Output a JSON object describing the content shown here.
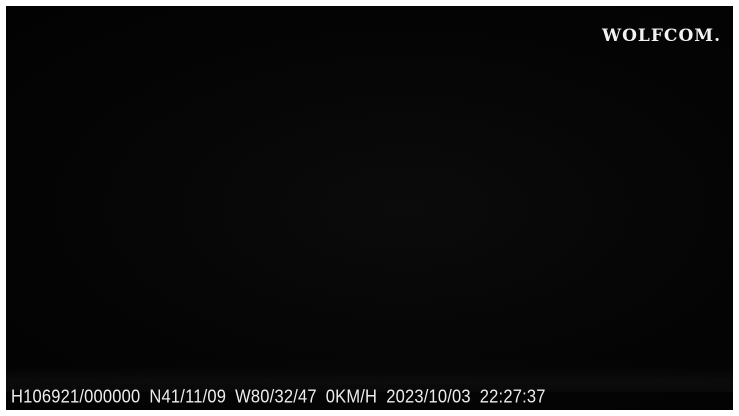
{
  "overlay": {
    "brand": "WOLFCOM.",
    "device_record_id": "H106921/000000",
    "latitude": "N41/11/09",
    "longitude": "W80/32/47",
    "speed": "0KM/H",
    "date": "2023/10/03",
    "time": "22:27:37"
  },
  "colors": {
    "background": "#030303",
    "overlay_text": "#ececec"
  }
}
